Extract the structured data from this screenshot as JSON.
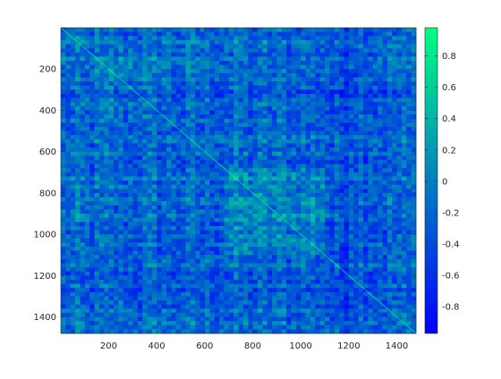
{
  "chart_data": {
    "type": "heatmap",
    "title": "",
    "xlabel": "",
    "ylabel": "",
    "xlim": [
      1,
      1480
    ],
    "ylim": [
      1,
      1480
    ],
    "x_ticks": [
      200,
      400,
      600,
      800,
      1000,
      1200,
      1400
    ],
    "y_ticks": [
      200,
      400,
      600,
      800,
      1000,
      1200,
      1400
    ],
    "y_direction": "reversed",
    "colormap": "winter",
    "colormap_endpoints": [
      "#0000ff",
      "#00ff80"
    ],
    "colorbar": {
      "range": [
        -0.97,
        0.98
      ],
      "ticks": [
        -0.8,
        -0.6,
        -0.4,
        -0.2,
        0,
        0.2,
        0.4,
        0.6,
        0.8
      ],
      "tick_labels": [
        "-0.8",
        "-0.6",
        "-0.4",
        "-0.2",
        "0",
        "0.2",
        "0.4",
        "0.6",
        "0.8"
      ],
      "placement": "right"
    },
    "values_note_shown": false,
    "grid": false
  }
}
